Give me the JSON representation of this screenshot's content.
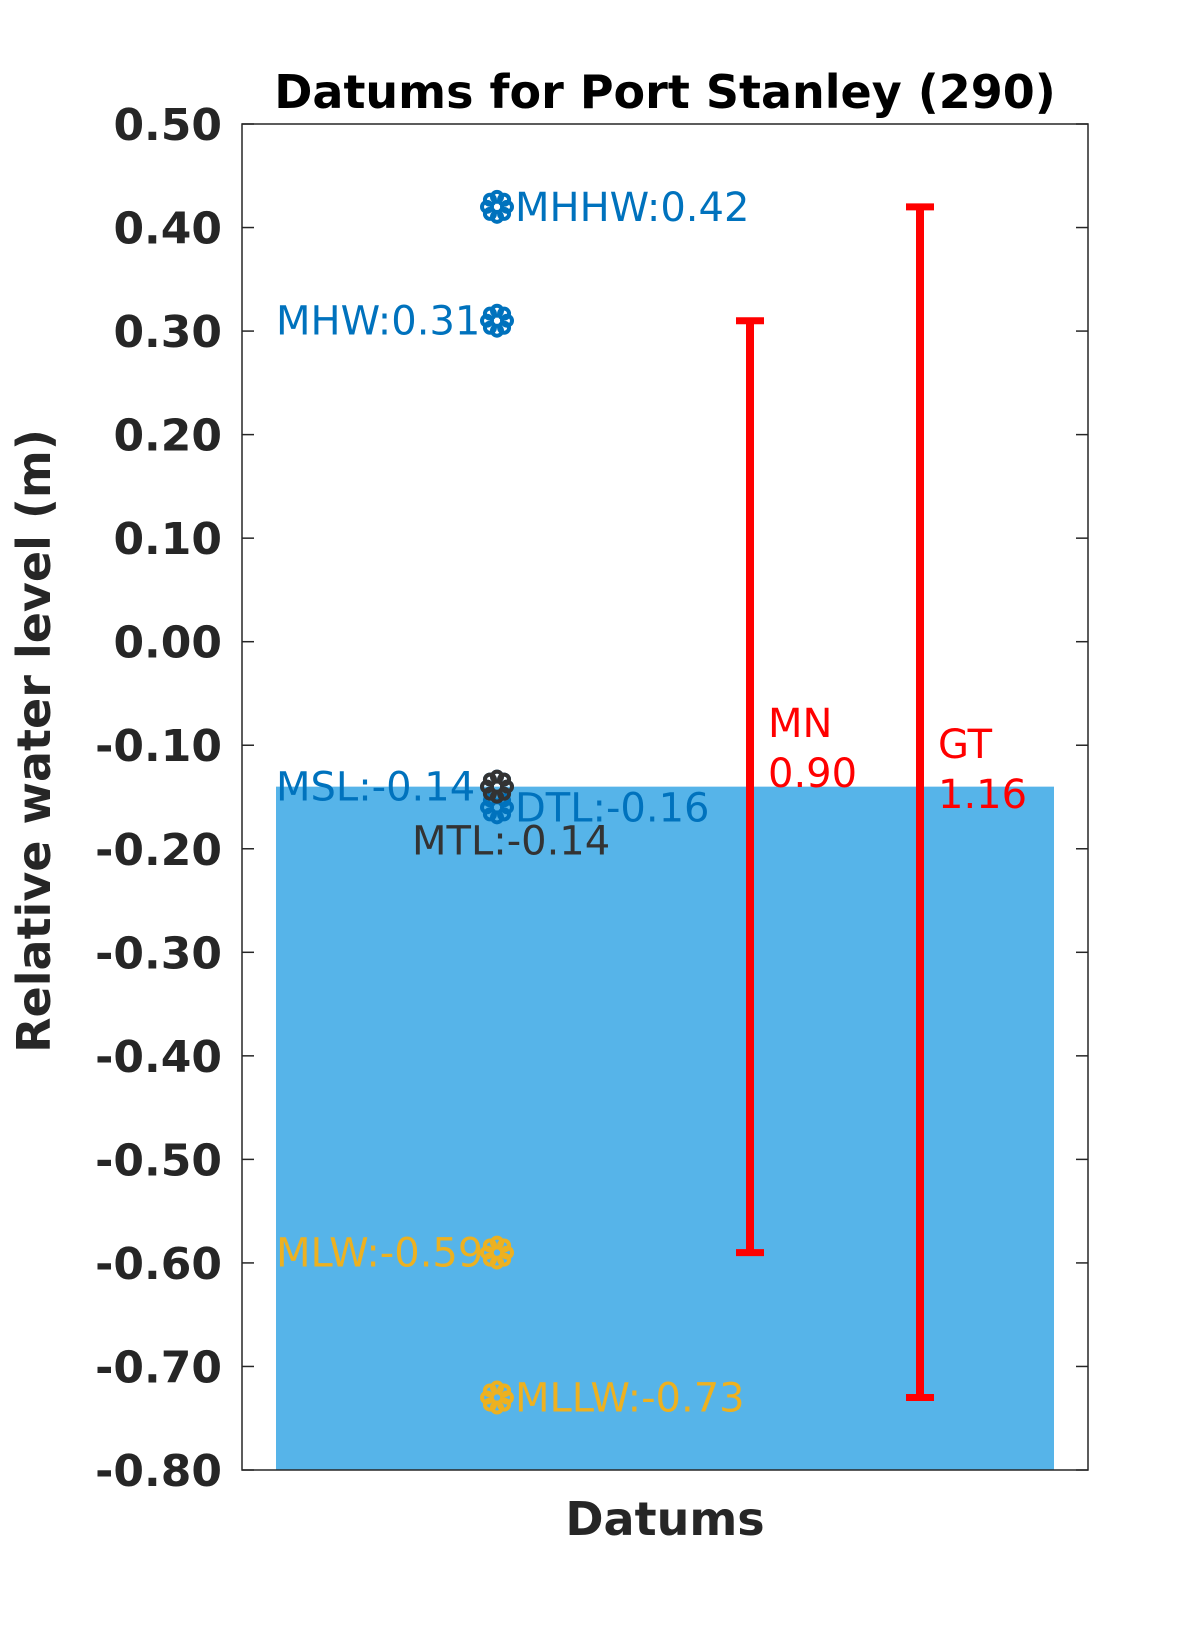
{
  "chart_data": {
    "type": "scatter",
    "title": "Datums for Port Stanley (290)",
    "xlabel": "Datums",
    "ylabel": "Relative water level (m)",
    "ylim": [
      -0.8,
      0.5
    ],
    "yticks": [
      "0.50",
      "0.40",
      "0.30",
      "0.20",
      "0.10",
      "0.00",
      "-0.10",
      "-0.20",
      "-0.30",
      "-0.40",
      "-0.50",
      "-0.60",
      "-0.70",
      "-0.80"
    ],
    "ytick_values": [
      0.5,
      0.4,
      0.3,
      0.2,
      0.1,
      0.0,
      -0.1,
      -0.2,
      -0.3,
      -0.4,
      -0.5,
      -0.6,
      -0.7,
      -0.8
    ],
    "grid": false,
    "colors": {
      "high": "#0072BD",
      "low": "#EDB120",
      "mtl": "#333333",
      "water": "#56B4E9",
      "range": "#FF0000"
    },
    "water_level": -0.14,
    "datums": [
      {
        "name": "MHHW",
        "label": "MHHW:0.42",
        "value": 0.42,
        "color": "#0072BD",
        "anchor": "right"
      },
      {
        "name": "MHW",
        "label": "MHW:0.31",
        "value": 0.31,
        "color": "#0072BD",
        "anchor": "left"
      },
      {
        "name": "MSL",
        "label": "MSL:-0.14",
        "value": -0.14,
        "color": "#0072BD",
        "anchor": "left"
      },
      {
        "name": "DTL",
        "label": "DTL:-0.16",
        "value": -0.16,
        "color": "#0072BD",
        "anchor": "right"
      },
      {
        "name": "MTL",
        "label": "MTL:-0.14",
        "value": -0.14,
        "color": "#333333",
        "anchor": "below"
      },
      {
        "name": "MLW",
        "label": "MLW:-0.59",
        "value": -0.59,
        "color": "#EDB120",
        "anchor": "left"
      },
      {
        "name": "MLLW",
        "label": "MLLW:-0.73",
        "value": -0.73,
        "color": "#EDB120",
        "anchor": "right"
      }
    ],
    "ranges": [
      {
        "name": "MN",
        "value": "0.90",
        "low": -0.59,
        "high": 0.31
      },
      {
        "name": "GT",
        "value": "1.16",
        "low": -0.73,
        "high": 0.42
      }
    ]
  }
}
